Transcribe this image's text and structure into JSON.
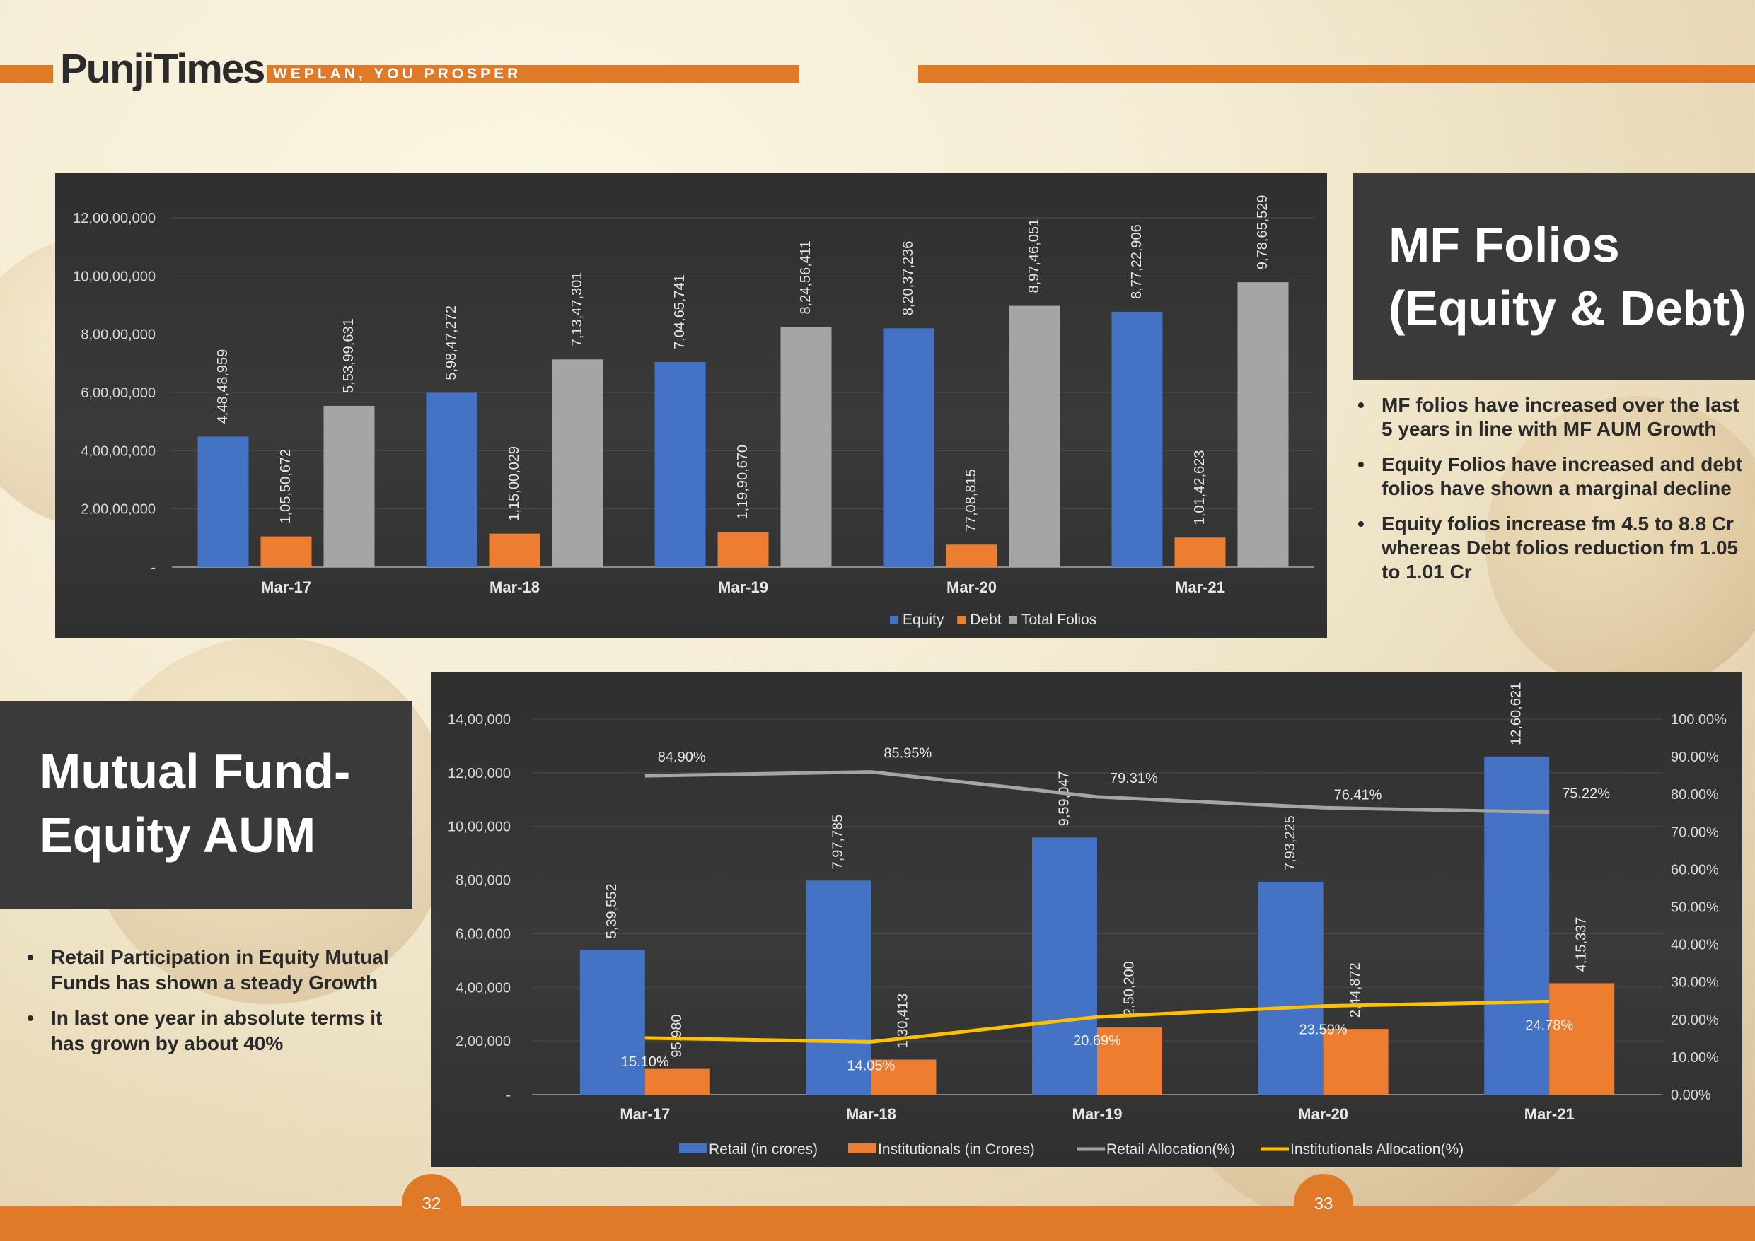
{
  "header": {
    "brand": "PunjiTimes",
    "tagline": "WEPLAN, YOU PROSPER"
  },
  "colors": {
    "accent": "#e07a28",
    "equity": "#4472c4",
    "debt": "#ed7d31",
    "total": "#a5a5a5",
    "inst_line": "#ffc000",
    "panel": "#3a3a3a"
  },
  "folios_panel": {
    "title_line1": "MF Folios",
    "title_line2": "(Equity & Debt)",
    "bullets": [
      "MF folios have increased over the last 5 years in line with MF AUM Growth",
      "Equity Folios have increased and debt folios have shown a marginal decline",
      "Equity folios increase fm 4.5 to 8.8 Cr whereas Debt folios reduction fm 1.05 to 1.01 Cr"
    ]
  },
  "aum_panel": {
    "title_line1": "Mutual Fund-",
    "title_line2": "Equity AUM",
    "bullets": [
      "Retail Participation in Equity Mutual Funds has shown a steady Growth",
      "In last one year in absolute terms it has grown by about 40%"
    ]
  },
  "pages": {
    "left": "32",
    "right": "33"
  },
  "chart_data": [
    {
      "type": "bar",
      "categories": [
        "Mar-17",
        "Mar-18",
        "Mar-19",
        "Mar-20",
        "Mar-21"
      ],
      "series": [
        {
          "name": "Equity",
          "values": [
            44848959,
            59847272,
            70465741,
            82037236,
            87722906
          ],
          "labels": [
            "4,48,48,959",
            "5,98,47,272",
            "7,04,65,741",
            "8,20,37,236",
            "8,77,22,906"
          ]
        },
        {
          "name": "Debt",
          "values": [
            10550672,
            11500029,
            11990670,
            7708815,
            10142623
          ],
          "labels": [
            "1,05,50,672",
            "1,15,00,029",
            "1,19,90,670",
            "77,08,815",
            "1,01,42,623"
          ]
        },
        {
          "name": "Total Folios",
          "values": [
            55399631,
            71347301,
            82456411,
            89746051,
            97865529
          ],
          "labels": [
            "5,53,99,631",
            "7,13,47,301",
            "8,24,56,411",
            "8,97,46,051",
            "9,78,65,529"
          ]
        }
      ],
      "ylim": [
        0,
        120000000
      ],
      "yticks": [
        "-",
        "2,00,00,000",
        "4,00,00,000",
        "6,00,00,000",
        "8,00,00,000",
        "10,00,00,000",
        "12,00,00,000"
      ],
      "legend": "bottom-right",
      "grid": true
    },
    {
      "type": "bar",
      "categories": [
        "Mar-17",
        "Mar-18",
        "Mar-19",
        "Mar-20",
        "Mar-21"
      ],
      "series": [
        {
          "name": "Retail (in crores)",
          "values": [
            539552,
            797785,
            959047,
            793225,
            1260621
          ],
          "labels": [
            "5,39,552",
            "7,97,785",
            "9,59,047",
            "7,93,225",
            "12,60,621"
          ]
        },
        {
          "name": "Institutionals (in Crores)",
          "values": [
            95980,
            130413,
            250200,
            244872,
            415337
          ],
          "labels": [
            "95,980",
            "1,30,413",
            "2,50,200",
            "2,44,872",
            "4,15,337"
          ]
        },
        {
          "name": "Retail Allocation(%)",
          "type": "line",
          "axis": "right",
          "values": [
            84.9,
            85.95,
            79.31,
            76.41,
            75.22
          ],
          "labels": [
            "84.90%",
            "85.95%",
            "79.31%",
            "76.41%",
            "75.22%"
          ]
        },
        {
          "name": "Institutionals Allocation(%)",
          "type": "line",
          "axis": "right",
          "values": [
            15.1,
            14.05,
            20.69,
            23.59,
            24.78
          ],
          "labels": [
            "15.10%",
            "14.05%",
            "20.69%",
            "23.59%",
            "24.78%"
          ]
        }
      ],
      "ylim": [
        0,
        1400000
      ],
      "yticks": [
        "-",
        "2,00,000",
        "4,00,000",
        "6,00,000",
        "8,00,000",
        "10,00,000",
        "12,00,000",
        "14,00,000"
      ],
      "y2lim": [
        0,
        100
      ],
      "y2ticks": [
        "0.00%",
        "10.00%",
        "20.00%",
        "30.00%",
        "40.00%",
        "50.00%",
        "60.00%",
        "70.00%",
        "80.00%",
        "90.00%",
        "100.00%"
      ],
      "legend": "bottom",
      "grid": true
    }
  ]
}
